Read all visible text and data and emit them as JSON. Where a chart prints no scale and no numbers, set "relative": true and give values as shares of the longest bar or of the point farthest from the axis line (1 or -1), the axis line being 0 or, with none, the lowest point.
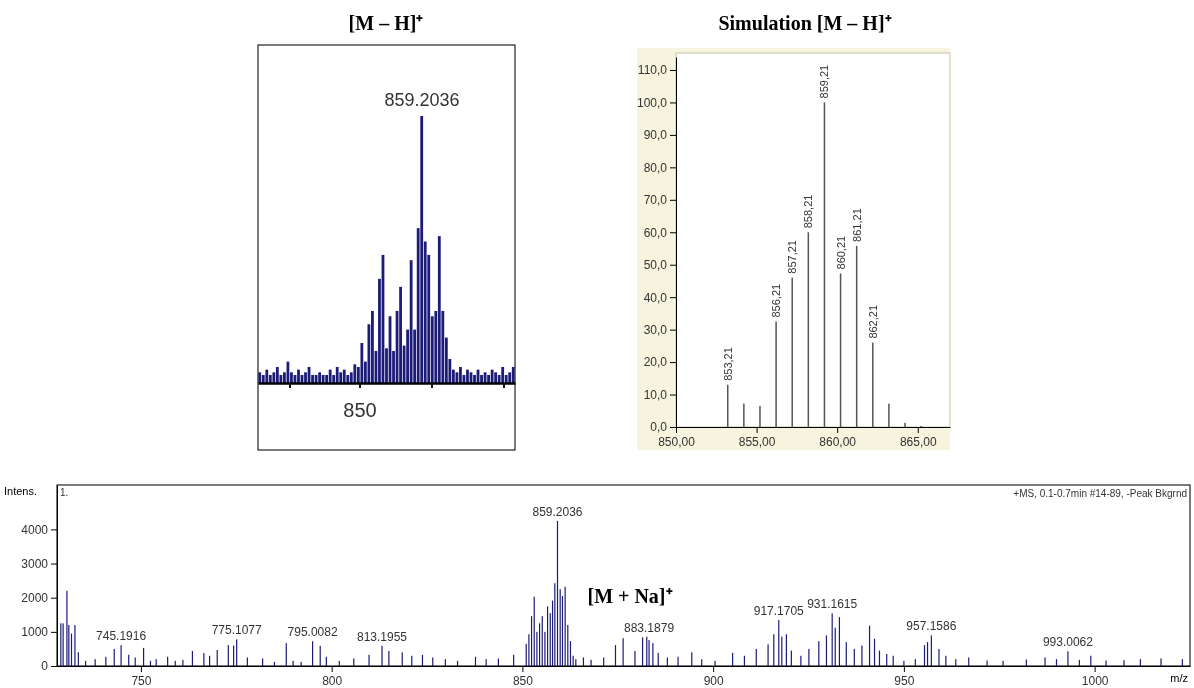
{
  "chart_data": [
    {
      "type": "bar",
      "title": "[M – H]⁺",
      "relative": true,
      "color": "#1c1c78",
      "annotations": [
        "859.2036",
        "850"
      ],
      "categories": [
        null,
        null,
        null,
        null,
        null,
        null,
        null,
        null,
        null,
        null,
        null,
        null,
        null,
        null,
        null,
        null,
        null,
        null,
        null,
        null,
        null,
        null,
        null,
        null,
        null,
        null,
        null,
        null,
        null,
        null,
        null,
        null,
        null,
        null,
        null,
        null,
        null,
        null,
        null,
        null,
        null,
        null,
        null,
        null,
        null,
        null,
        null,
        null,
        null,
        null,
        null,
        null,
        null,
        null,
        null,
        null,
        null,
        null,
        null,
        null,
        null,
        null,
        null,
        null,
        null,
        null,
        null,
        null,
        null,
        null,
        null,
        null,
        null
      ],
      "values": [
        0.04,
        0.03,
        0.05,
        0.03,
        0.04,
        0.06,
        0.03,
        0.04,
        0.08,
        0.04,
        0.03,
        0.05,
        0.03,
        0.04,
        0.06,
        0.03,
        0.03,
        0.04,
        0.03,
        0.03,
        0.05,
        0.03,
        0.06,
        0.04,
        0.05,
        0.03,
        0.04,
        0.07,
        0.06,
        0.15,
        0.08,
        0.22,
        0.27,
        0.12,
        0.39,
        0.48,
        0.13,
        0.25,
        0.12,
        0.27,
        0.36,
        0.14,
        0.2,
        0.46,
        0.2,
        0.58,
        1.0,
        0.53,
        0.48,
        0.25,
        0.27,
        0.55,
        0.27,
        0.17,
        0.09,
        0.05,
        0.04,
        0.06,
        0.03,
        0.05,
        0.04,
        0.03,
        0.05,
        0.03,
        0.04,
        0.03,
        0.05,
        0.04,
        0.03,
        0.06,
        0.03,
        0.04,
        0.06
      ]
    },
    {
      "type": "bar",
      "title": "Simulation [M – H]⁺",
      "color": "#555555",
      "x": [
        853.21,
        854.21,
        855.21,
        856.21,
        857.21,
        858.21,
        859.21,
        860.21,
        861.21,
        862.21,
        863.21,
        864.21,
        865.21
      ],
      "values": [
        13,
        7.2,
        6.5,
        32.5,
        46,
        60,
        100,
        47.3,
        55.8,
        26,
        7.2,
        1.3,
        0.3
      ],
      "xlim": [
        850,
        867
      ],
      "xticks": [
        {
          "value": 850,
          "label": "850,00"
        },
        {
          "value": 855,
          "label": "855,00"
        },
        {
          "value": 860,
          "label": "860,00"
        },
        {
          "value": 865,
          "label": "865,00"
        }
      ],
      "ylim": [
        0,
        114
      ],
      "yticks": [
        {
          "value": 0,
          "label": "0,0"
        },
        {
          "value": 10,
          "label": "10,0"
        },
        {
          "value": 20,
          "label": "20,0"
        },
        {
          "value": 30,
          "label": "30,0"
        },
        {
          "value": 40,
          "label": "40,0"
        },
        {
          "value": 50,
          "label": "50,0"
        },
        {
          "value": 60,
          "label": "60,0"
        },
        {
          "value": 70,
          "label": "70,0"
        },
        {
          "value": 80,
          "label": "80,0"
        },
        {
          "value": 90,
          "label": "90,0"
        },
        {
          "value": 100,
          "label": "100,0"
        },
        {
          "value": 110,
          "label": "110,0"
        }
      ],
      "annotations": [
        {
          "text": "853,21",
          "x": 853.21,
          "y": 13
        },
        {
          "text": "856,21",
          "x": 856.21,
          "y": 32.5
        },
        {
          "text": "857,21",
          "x": 857.21,
          "y": 46
        },
        {
          "text": "858,21",
          "x": 858.21,
          "y": 60
        },
        {
          "text": "859,21",
          "x": 859.21,
          "y": 100
        },
        {
          "text": "860,21",
          "x": 860.21,
          "y": 47.3
        },
        {
          "text": "861,21",
          "x": 861.21,
          "y": 55.8
        },
        {
          "text": "862,21",
          "x": 862.21,
          "y": 26
        }
      ]
    },
    {
      "type": "bar",
      "color": "#1c1c78",
      "xlabel": "m/z",
      "ylabel": "Intens.",
      "x": [
        729.0,
        729.6,
        730.6,
        731.1,
        731.8,
        732.7,
        733.6,
        735.5,
        738,
        740.8,
        743.0,
        744.8,
        746.8,
        748.5,
        750.7,
        752.5,
        754,
        757,
        759,
        761,
        763.5,
        766.5,
        768,
        770,
        772.9,
        774.3,
        775.1,
        777.9,
        781.9,
        785,
        788.1,
        789.9,
        792,
        795.0,
        797,
        798.6,
        802,
        805.8,
        809.8,
        813.2,
        815,
        818.5,
        821,
        823.8,
        826.5,
        829.8,
        833,
        837.7,
        840.5,
        843.7,
        847.7,
        851,
        851.7,
        852.4,
        853.1,
        853.8,
        854.5,
        855.2,
        855.9,
        856.6,
        857.3,
        857.9,
        858.5,
        859.2,
        859.9,
        860.5,
        861.2,
        861.9,
        862.6,
        863.3,
        864,
        866,
        868,
        871.3,
        874.4,
        876.4,
        879.5,
        881.5,
        882.6,
        883.2,
        884.2,
        885.6,
        888,
        890.8,
        894.4,
        897,
        900.5,
        905.1,
        908.2,
        911.3,
        914.4,
        915.9,
        917.2,
        918,
        919.2,
        920.5,
        923,
        925.1,
        927.7,
        929.7,
        931.2,
        932,
        933.1,
        934.9,
        937,
        939,
        941,
        942.3,
        943.6,
        945.5,
        947.2,
        950,
        953,
        955.4,
        956.2,
        957.2,
        959.2,
        961,
        963.6,
        967,
        971.8,
        976,
        982.1,
        987,
        990,
        993.0,
        996,
        999,
        1003,
        1007.7,
        1012,
        1017.4,
        1023
      ],
      "values": [
        1250,
        1250,
        2200,
        1200,
        950,
        1200,
        400,
        150,
        200,
        270,
        500,
        610,
        330,
        250,
        530,
        150,
        200,
        270,
        150,
        180,
        440,
        380,
        300,
        470,
        610,
        600,
        780,
        250,
        220,
        120,
        670,
        150,
        120,
        725,
        590,
        270,
        150,
        220,
        330,
        590,
        440,
        400,
        300,
        330,
        250,
        200,
        150,
        270,
        200,
        220,
        330,
        650,
        930,
        1460,
        2030,
        1000,
        1250,
        1460,
        1000,
        1745,
        1550,
        1915,
        2425,
        4250,
        2250,
        2050,
        2320,
        1200,
        730,
        300,
        200,
        250,
        180,
        250,
        610,
        815,
        440,
        840,
        860,
        760,
        670,
        385,
        250,
        270,
        400,
        200,
        150,
        385,
        300,
        500,
        635,
        930,
        1350,
        860,
        930,
        450,
        300,
        500,
        725,
        895,
        1540,
        1120,
        1430,
        700,
        500,
        600,
        1180,
        800,
        450,
        350,
        300,
        150,
        200,
        610,
        700,
        895,
        500,
        300,
        200,
        250,
        160,
        150,
        190,
        250,
        200,
        430,
        180,
        300,
        160,
        170,
        200,
        220,
        200
      ],
      "xlim": [
        728,
        1025
      ],
      "xticks": [
        750,
        800,
        850,
        900,
        950,
        1000
      ],
      "ylim": [
        0,
        5300
      ],
      "yticks": [
        0,
        1000,
        2000,
        3000,
        4000
      ],
      "annotations": [
        "1.",
        "+MS, 0.1-0.7min #14-89, -Peak Bkgrnd",
        "[M + Na]⁺",
        {
          "text": "745.1916",
          "x": 744.8,
          "y": 610
        },
        {
          "text": "775.1077",
          "x": 775.1,
          "y": 780
        },
        {
          "text": "795.0082",
          "x": 795.0,
          "y": 725
        },
        {
          "text": "813.1955",
          "x": 813.2,
          "y": 590
        },
        {
          "text": "859.2036",
          "x": 859.2,
          "y": 4250
        },
        {
          "text": "883.1879",
          "x": 883.2,
          "y": 860
        },
        {
          "text": "917.1705",
          "x": 917.2,
          "y": 1350
        },
        {
          "text": "931.1615",
          "x": 931.2,
          "y": 1540
        },
        {
          "text": "957.1586",
          "x": 957.2,
          "y": 895
        },
        {
          "text": "993.0062",
          "x": 993.0,
          "y": 430
        }
      ]
    }
  ]
}
